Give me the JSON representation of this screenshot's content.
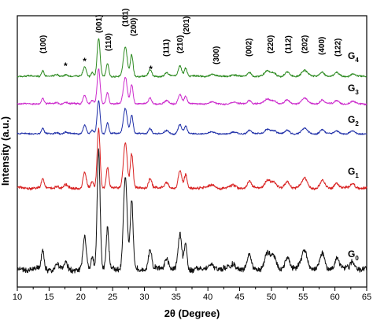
{
  "chart_data": {
    "type": "line",
    "xlabel": "2θ (Degree)",
    "ylabel": "Intensity (a.u.)",
    "xlim": [
      10,
      65
    ],
    "x_ticks": [
      10,
      15,
      20,
      25,
      30,
      35,
      40,
      45,
      50,
      55,
      60,
      65
    ],
    "y_ticks_shown": false,
    "grid": false,
    "series": [
      {
        "name": "G",
        "subscript": "4",
        "color": "#2e8b22",
        "offset": 4
      },
      {
        "name": "G",
        "subscript": "3",
        "color": "#cc2bcc",
        "offset": 3
      },
      {
        "name": "G",
        "subscript": "2",
        "color": "#1f2fa8",
        "offset": 2
      },
      {
        "name": "G",
        "subscript": "1",
        "color": "#d82020",
        "offset": 1
      },
      {
        "name": "G",
        "subscript": "0",
        "color": "#111111",
        "offset": 0
      }
    ],
    "pattern_peaks": [
      {
        "x": 14.0,
        "h": 0.16,
        "w": 0.2
      },
      {
        "x": 16.2,
        "h": 0.04,
        "w": 0.25
      },
      {
        "x": 17.6,
        "h": 0.05,
        "w": 0.25
      },
      {
        "x": 20.6,
        "h": 0.26,
        "w": 0.25
      },
      {
        "x": 21.8,
        "h": 0.1,
        "w": 0.2
      },
      {
        "x": 22.8,
        "h": 1.0,
        "w": 0.23
      },
      {
        "x": 24.2,
        "h": 0.34,
        "w": 0.2
      },
      {
        "x": 27.0,
        "h": 0.77,
        "w": 0.3
      },
      {
        "x": 28.0,
        "h": 0.57,
        "w": 0.22
      },
      {
        "x": 30.9,
        "h": 0.17,
        "w": 0.25
      },
      {
        "x": 33.5,
        "h": 0.09,
        "w": 0.3
      },
      {
        "x": 35.6,
        "h": 0.28,
        "w": 0.28
      },
      {
        "x": 36.5,
        "h": 0.22,
        "w": 0.22
      },
      {
        "x": 40.6,
        "h": 0.05,
        "w": 0.4
      },
      {
        "x": 44.0,
        "h": 0.04,
        "w": 0.4
      },
      {
        "x": 46.5,
        "h": 0.11,
        "w": 0.3
      },
      {
        "x": 49.4,
        "h": 0.14,
        "w": 0.45
      },
      {
        "x": 50.4,
        "h": 0.09,
        "w": 0.35
      },
      {
        "x": 52.5,
        "h": 0.11,
        "w": 0.35
      },
      {
        "x": 55.2,
        "h": 0.16,
        "w": 0.45
      },
      {
        "x": 58.0,
        "h": 0.12,
        "w": 0.35
      },
      {
        "x": 60.3,
        "h": 0.09,
        "w": 0.35
      },
      {
        "x": 62.8,
        "h": 0.07,
        "w": 0.35
      }
    ],
    "annotations": [
      {
        "text": "(100)",
        "x": 14.0,
        "rotate": true
      },
      {
        "text": "*",
        "x": 17.6,
        "rotate": false
      },
      {
        "text": "*",
        "x": 20.6,
        "rotate": false
      },
      {
        "text": "(001)",
        "x": 22.8,
        "rotate": true
      },
      {
        "text": "(110)",
        "x": 24.3,
        "rotate": true
      },
      {
        "text": "(101)",
        "x": 27.0,
        "rotate": true
      },
      {
        "text": "(200)",
        "x": 28.3,
        "rotate": true
      },
      {
        "text": "*",
        "x": 31.0,
        "rotate": false
      },
      {
        "text": "(111)",
        "x": 33.4,
        "rotate": true
      },
      {
        "text": "(201)",
        "x": 36.6,
        "rotate": true
      },
      {
        "text": "(210)",
        "x": 35.6,
        "rotate": true
      },
      {
        "text": "(300)",
        "x": 41.3,
        "rotate": true
      },
      {
        "text": "(002)",
        "x": 46.4,
        "rotate": true
      },
      {
        "text": "(220)",
        "x": 49.8,
        "rotate": true
      },
      {
        "text": "(112)",
        "x": 52.6,
        "rotate": true
      },
      {
        "text": "(202)",
        "x": 55.2,
        "rotate": true
      },
      {
        "text": "(400)",
        "x": 57.9,
        "rotate": true
      },
      {
        "text": "(122)",
        "x": 60.4,
        "rotate": true
      }
    ]
  }
}
